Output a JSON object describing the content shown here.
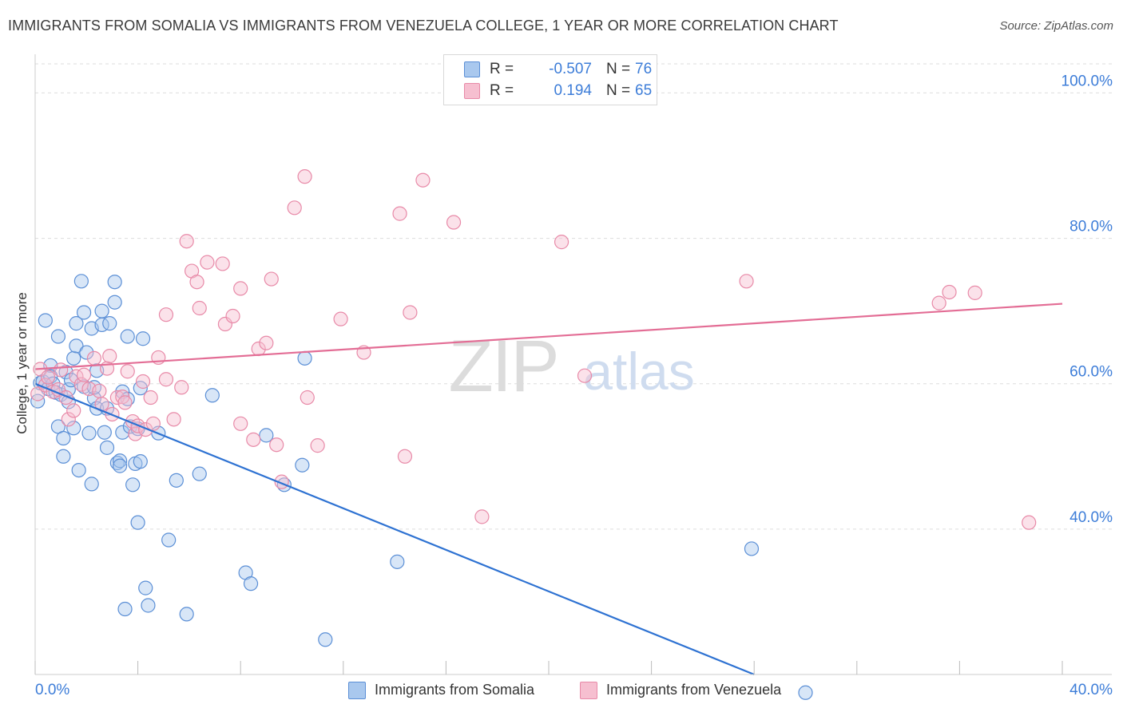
{
  "title": "IMMIGRANTS FROM SOMALIA VS IMMIGRANTS FROM VENEZUELA COLLEGE, 1 YEAR OR MORE CORRELATION CHART",
  "source": "Source: ZipAtlas.com",
  "watermark": {
    "part1": "ZIP",
    "part2": "atlas"
  },
  "legend": {
    "rows": [
      {
        "r_label": "R =",
        "r_value": "-0.507",
        "n_label": "N =",
        "n_value": "76"
      },
      {
        "r_label": "R =",
        "r_value": "0.194",
        "n_label": "N =",
        "n_value": "65"
      }
    ]
  },
  "colors": {
    "blue_fill": "#a9c8ee",
    "blue_stroke": "#5b8fd6",
    "blue_line": "#2e72d2",
    "pink_fill": "#f6bfd0",
    "pink_stroke": "#e88aa8",
    "pink_line": "#e36d95",
    "tick_label": "#3d7dd8",
    "grid": "#dddddd"
  },
  "chart_data": {
    "type": "scatter",
    "title": "IMMIGRANTS FROM SOMALIA VS IMMIGRANTS FROM VENEZUELA COLLEGE, 1 YEAR OR MORE CORRELATION CHART",
    "xlabel": "",
    "ylabel": "College, 1 year or more",
    "xlim": [
      0,
      40
    ],
    "ylim": [
      20,
      104
    ],
    "x_tick_labels": [
      "0.0%",
      "40.0%"
    ],
    "y_ticks": [
      40,
      60,
      80,
      100
    ],
    "y_tick_labels": [
      "40.0%",
      "60.0%",
      "80.0%",
      "100.0%"
    ],
    "grid": true,
    "series": [
      {
        "name": "Immigrants from Somalia",
        "color": "blue",
        "R": -0.507,
        "N": 76,
        "trend": {
          "x": [
            0.0,
            28.0
          ],
          "y": [
            60.0,
            20.0
          ]
        },
        "points": [
          [
            0.1,
            57.6
          ],
          [
            0.2,
            60.1
          ],
          [
            0.3,
            60.3
          ],
          [
            0.4,
            68.7
          ],
          [
            0.5,
            59.3
          ],
          [
            0.6,
            62.5
          ],
          [
            0.6,
            61.0
          ],
          [
            0.7,
            60.0
          ],
          [
            0.8,
            58.8
          ],
          [
            0.9,
            66.5
          ],
          [
            0.9,
            54.1
          ],
          [
            1.0,
            58.5
          ],
          [
            1.1,
            52.5
          ],
          [
            1.1,
            50.0
          ],
          [
            1.2,
            61.6
          ],
          [
            1.3,
            57.5
          ],
          [
            1.3,
            59.2
          ],
          [
            1.4,
            60.5
          ],
          [
            1.5,
            63.5
          ],
          [
            1.5,
            53.9
          ],
          [
            1.6,
            68.3
          ],
          [
            1.6,
            65.2
          ],
          [
            1.7,
            48.1
          ],
          [
            1.8,
            74.1
          ],
          [
            1.9,
            59.6
          ],
          [
            1.9,
            69.8
          ],
          [
            2.0,
            64.3
          ],
          [
            2.1,
            53.2
          ],
          [
            2.2,
            67.6
          ],
          [
            2.2,
            46.2
          ],
          [
            2.3,
            58.0
          ],
          [
            2.3,
            59.5
          ],
          [
            2.4,
            56.6
          ],
          [
            2.4,
            61.8
          ],
          [
            2.6,
            68.1
          ],
          [
            2.6,
            70.0
          ],
          [
            2.7,
            53.3
          ],
          [
            2.8,
            56.6
          ],
          [
            2.8,
            51.2
          ],
          [
            2.9,
            68.3
          ],
          [
            3.1,
            71.2
          ],
          [
            3.1,
            74.0
          ],
          [
            3.2,
            49.1
          ],
          [
            3.3,
            49.4
          ],
          [
            3.3,
            48.7
          ],
          [
            3.4,
            58.9
          ],
          [
            3.4,
            53.3
          ],
          [
            3.5,
            29.0
          ],
          [
            3.6,
            57.9
          ],
          [
            3.6,
            66.5
          ],
          [
            3.7,
            54.1
          ],
          [
            3.8,
            46.1
          ],
          [
            3.9,
            49.0
          ],
          [
            4.0,
            53.8
          ],
          [
            4.0,
            40.9
          ],
          [
            4.1,
            59.4
          ],
          [
            4.1,
            49.3
          ],
          [
            4.2,
            66.2
          ],
          [
            4.3,
            31.9
          ],
          [
            4.4,
            29.5
          ],
          [
            4.8,
            53.2
          ],
          [
            5.2,
            38.5
          ],
          [
            5.5,
            46.7
          ],
          [
            5.9,
            28.3
          ],
          [
            6.4,
            47.6
          ],
          [
            6.9,
            58.4
          ],
          [
            8.2,
            34.0
          ],
          [
            8.4,
            32.5
          ],
          [
            9.0,
            52.9
          ],
          [
            9.7,
            46.1
          ],
          [
            10.4,
            48.8
          ],
          [
            10.5,
            63.5
          ],
          [
            11.3,
            24.8
          ],
          [
            14.1,
            35.5
          ],
          [
            27.9,
            37.3
          ],
          [
            30.0,
            17.5
          ]
        ]
      },
      {
        "name": "Immigrants from Venezuela",
        "color": "pink",
        "R": 0.194,
        "N": 65,
        "trend": {
          "x": [
            0.0,
            40.0
          ],
          "y": [
            62.0,
            71.0
          ]
        },
        "points": [
          [
            0.1,
            58.6
          ],
          [
            0.2,
            62.0
          ],
          [
            0.4,
            59.8
          ],
          [
            0.5,
            60.9
          ],
          [
            0.7,
            58.9
          ],
          [
            0.9,
            59.2
          ],
          [
            1.0,
            61.9
          ],
          [
            1.2,
            58.1
          ],
          [
            1.3,
            55.1
          ],
          [
            1.5,
            56.3
          ],
          [
            1.6,
            61.0
          ],
          [
            1.8,
            59.9
          ],
          [
            1.9,
            61.2
          ],
          [
            2.1,
            59.3
          ],
          [
            2.3,
            63.5
          ],
          [
            2.5,
            59.0
          ],
          [
            2.6,
            57.2
          ],
          [
            2.8,
            62.1
          ],
          [
            2.9,
            63.8
          ],
          [
            3.0,
            55.8
          ],
          [
            3.2,
            58.1
          ],
          [
            3.4,
            58.2
          ],
          [
            3.5,
            57.4
          ],
          [
            3.6,
            61.7
          ],
          [
            3.8,
            54.8
          ],
          [
            3.9,
            53.1
          ],
          [
            4.0,
            54.2
          ],
          [
            4.2,
            60.3
          ],
          [
            4.3,
            53.7
          ],
          [
            4.5,
            58.1
          ],
          [
            4.6,
            54.5
          ],
          [
            4.8,
            63.6
          ],
          [
            5.1,
            60.6
          ],
          [
            5.1,
            69.5
          ],
          [
            5.4,
            55.1
          ],
          [
            5.7,
            59.5
          ],
          [
            5.9,
            79.6
          ],
          [
            6.1,
            75.5
          ],
          [
            6.3,
            74.0
          ],
          [
            6.4,
            70.4
          ],
          [
            6.7,
            76.7
          ],
          [
            7.3,
            76.5
          ],
          [
            7.4,
            68.2
          ],
          [
            7.7,
            69.3
          ],
          [
            8.0,
            73.1
          ],
          [
            8.0,
            54.5
          ],
          [
            8.5,
            52.3
          ],
          [
            8.7,
            64.8
          ],
          [
            9.0,
            65.6
          ],
          [
            9.2,
            74.4
          ],
          [
            9.4,
            51.6
          ],
          [
            9.6,
            46.5
          ],
          [
            10.1,
            84.2
          ],
          [
            10.5,
            88.5
          ],
          [
            10.6,
            58.1
          ],
          [
            11.0,
            51.5
          ],
          [
            11.9,
            68.9
          ],
          [
            12.8,
            64.3
          ],
          [
            14.2,
            83.4
          ],
          [
            14.4,
            50.0
          ],
          [
            14.6,
            69.8
          ],
          [
            15.1,
            88.0
          ],
          [
            16.3,
            82.2
          ],
          [
            17.4,
            41.7
          ],
          [
            20.5,
            79.5
          ],
          [
            21.4,
            61.1
          ],
          [
            27.7,
            74.1
          ],
          [
            35.2,
            71.1
          ],
          [
            35.6,
            72.6
          ],
          [
            36.6,
            72.5
          ],
          [
            38.7,
            40.9
          ]
        ]
      }
    ]
  },
  "bottom_legend": [
    {
      "label": "Immigrants from Somalia",
      "color": "blue"
    },
    {
      "label": "Immigrants from Venezuela",
      "color": "pink"
    }
  ]
}
